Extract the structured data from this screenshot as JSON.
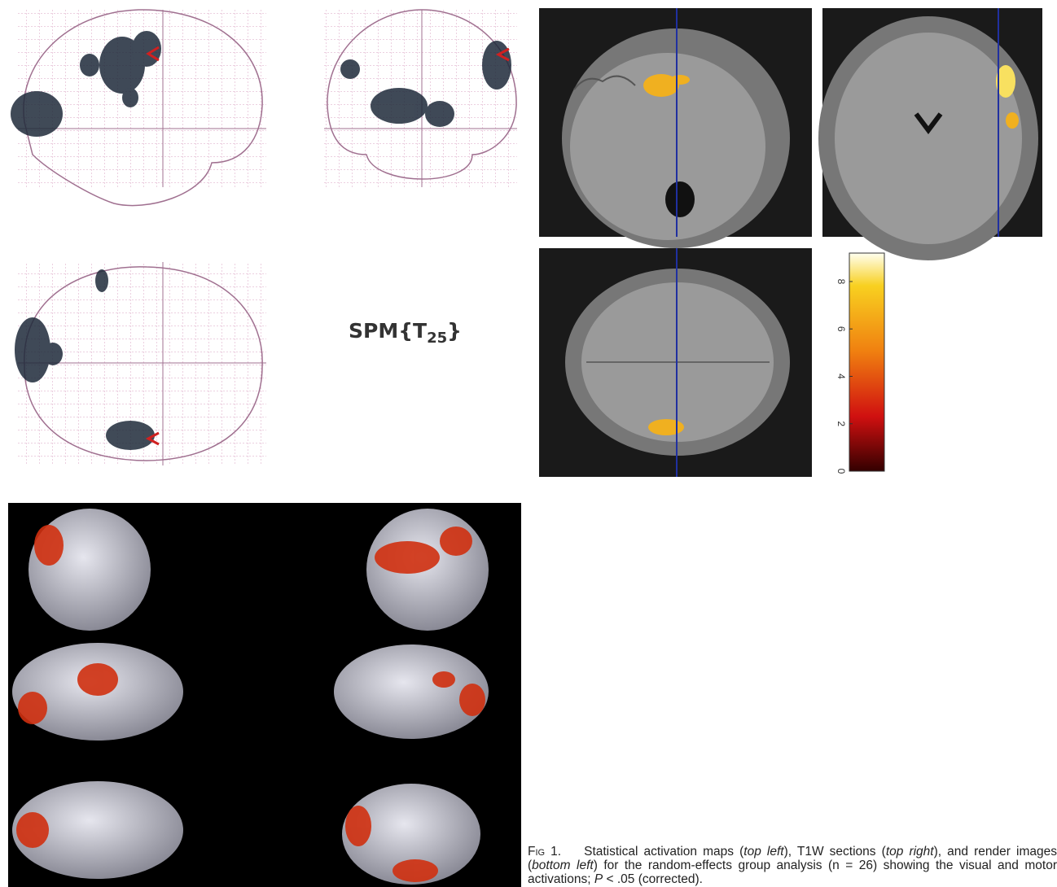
{
  "figure": {
    "spm_label": {
      "main": "SPM{T",
      "sub": "25",
      "close": "}"
    },
    "colorbar": {
      "clim": [
        0,
        9.2
      ],
      "ticks": [
        0,
        2,
        4,
        6,
        8
      ]
    },
    "caption": {
      "label": "Fig 1.",
      "segments": [
        {
          "text": "Statistical activation maps (",
          "italic": false
        },
        {
          "text": "top left",
          "italic": true
        },
        {
          "text": "), T1W sections (",
          "italic": false
        },
        {
          "text": "top right",
          "italic": true
        },
        {
          "text": "), and render images (",
          "italic": false
        },
        {
          "text": "bottom left",
          "italic": true
        },
        {
          "text": ") for the random-effects group analysis (n = 26) showing the visual and motor activations; ",
          "italic": false
        },
        {
          "text": "P",
          "italic": true
        },
        {
          "text": " < .05 (corrected).",
          "italic": false
        }
      ]
    }
  }
}
